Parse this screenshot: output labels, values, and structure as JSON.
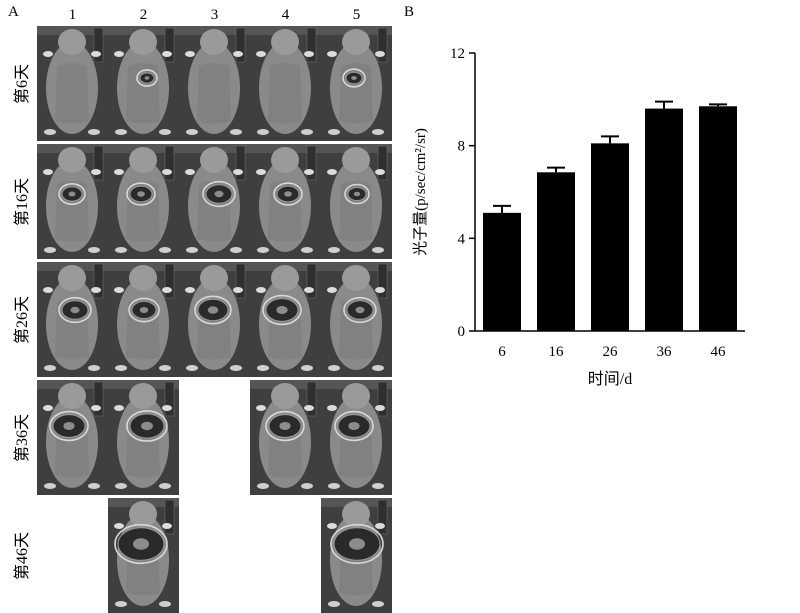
{
  "panel_a": {
    "label": "A",
    "columns": [
      "1",
      "2",
      "3",
      "4",
      "5"
    ],
    "rows": [
      {
        "label": "第6天",
        "present": [
          true,
          true,
          true,
          true,
          true
        ],
        "lesion": [
          0,
          0.15,
          0,
          0,
          0.2
        ]
      },
      {
        "label": "第16天",
        "present": [
          true,
          true,
          true,
          true,
          true
        ],
        "lesion": [
          0.3,
          0.35,
          0.45,
          0.35,
          0.25
        ]
      },
      {
        "label": "第26天",
        "present": [
          true,
          true,
          true,
          true,
          true
        ],
        "lesion": [
          0.45,
          0.4,
          0.55,
          0.6,
          0.45
        ]
      },
      {
        "label": "第36天",
        "present": [
          true,
          true,
          false,
          true,
          true
        ],
        "lesion": [
          0.6,
          0.65,
          0,
          0.6,
          0.6
        ]
      },
      {
        "label": "第46天",
        "present": [
          false,
          true,
          false,
          false,
          true
        ],
        "lesion": [
          0,
          0.95,
          0,
          0,
          0.95
        ]
      }
    ]
  },
  "panel_b": {
    "label": "B"
  },
  "chart_data": {
    "type": "bar",
    "categories": [
      "6",
      "16",
      "26",
      "36",
      "46"
    ],
    "values": [
      5.1,
      6.85,
      8.1,
      9.6,
      9.7
    ],
    "errors": [
      0.3,
      0.2,
      0.3,
      0.3,
      0.08
    ],
    "xlabel": "时间/d",
    "ylabel": "光子量(p/sec/cm²/sr)",
    "ylim": [
      0,
      12
    ],
    "yticks": [
      "0",
      "4",
      "8",
      "12"
    ],
    "bar_color": "#000000",
    "grid": false
  }
}
